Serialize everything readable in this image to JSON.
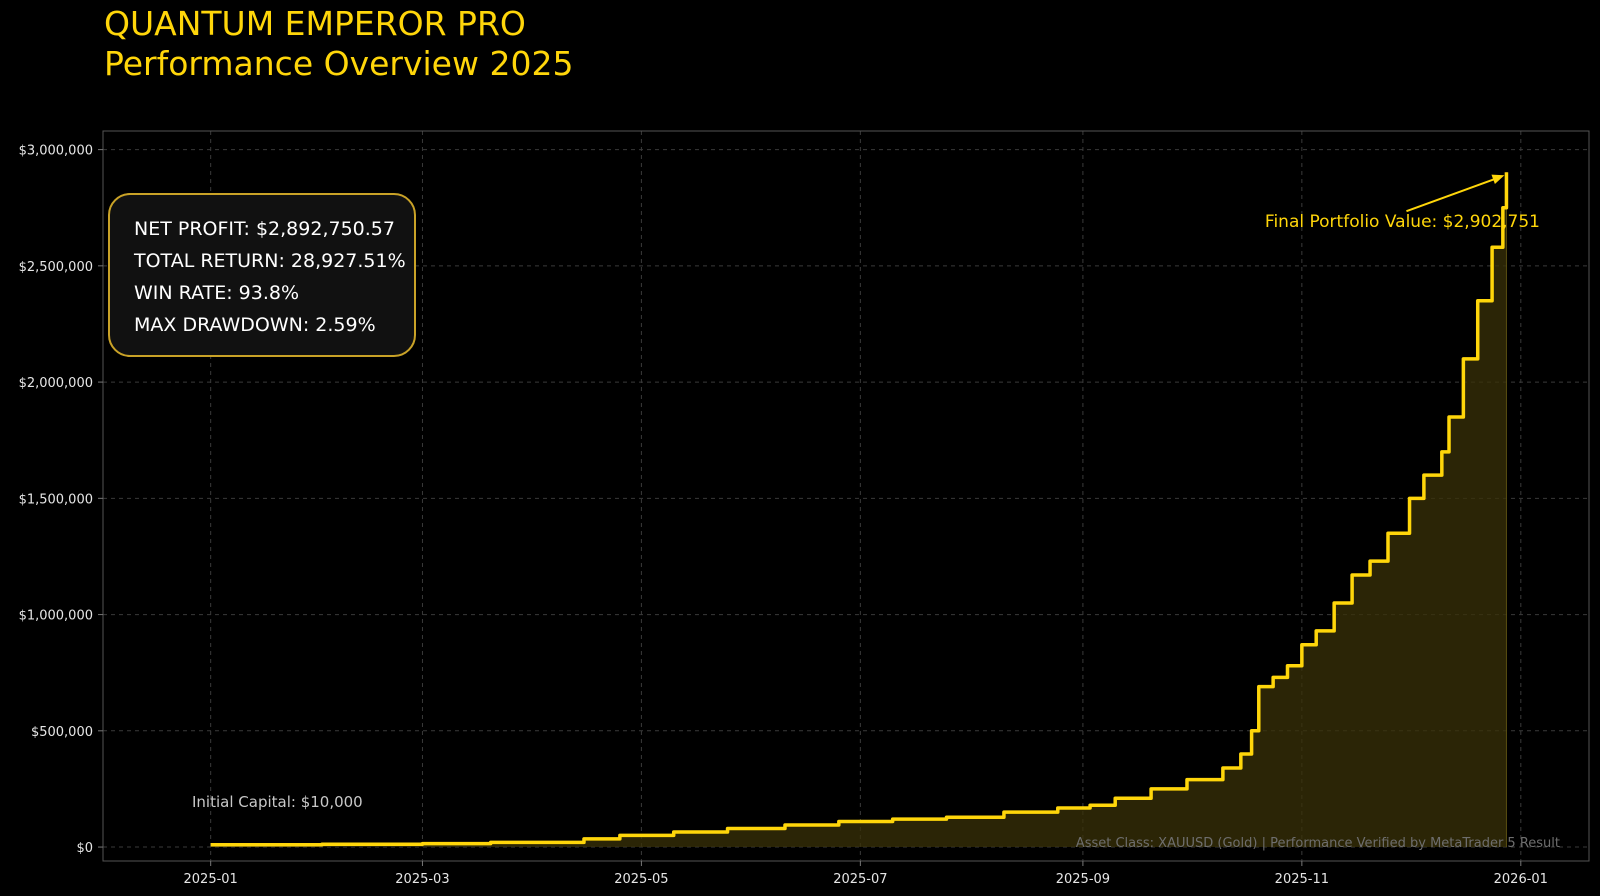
{
  "title": {
    "line1": "QUANTUM EMPEROR PRO",
    "line2": "Performance Overview 2025"
  },
  "stats": {
    "net_profit": "NET PROFIT: $2,892,750.57",
    "total_return": "TOTAL RETURN: 28,927.51%",
    "win_rate": "WIN RATE: 93.8%",
    "max_drawdown": "MAX DRAWDOWN: 2.59%"
  },
  "annotations": {
    "initial_capital": "Initial Capital: $10,000",
    "final_value": "Final Portfolio Value: $2,902,751",
    "footer": "Asset Class: XAUUSD (Gold) | Performance Verified by MetaTrader 5 Result"
  },
  "colors": {
    "background": "#000000",
    "accent": "#ffd60a",
    "fill": "#3a3208",
    "grid": "#3a3a3a",
    "axis": "#555555",
    "muted_text": "#6e6e6e"
  },
  "chart_data": {
    "type": "area",
    "title": "",
    "xlabel": "",
    "ylabel": "",
    "x_axis": {
      "type": "date",
      "range": [
        "2024-12-02",
        "2026-01-20"
      ],
      "ticks": [
        "2025-01-01",
        "2025-03-01",
        "2025-05-01",
        "2025-07-01",
        "2025-09-01",
        "2025-11-01",
        "2026-01-01"
      ],
      "tick_labels": [
        "2025-01",
        "2025-03",
        "2025-05",
        "2025-07",
        "2025-09",
        "2025-11",
        "2026-01"
      ]
    },
    "y_axis": {
      "range": [
        -60000,
        3080000
      ],
      "ticks": [
        0,
        500000,
        1000000,
        1500000,
        2000000,
        2500000,
        3000000
      ],
      "tick_labels": [
        "$0",
        "$500,000",
        "$1,000,000",
        "$1,500,000",
        "$2,000,000",
        "$2,500,000",
        "$3,000,000"
      ]
    },
    "grid": true,
    "series": [
      {
        "x": [
          "2025-01-01",
          "2025-02-01",
          "2025-03-01",
          "2025-03-20",
          "2025-04-15",
          "2025-04-25",
          "2025-05-10",
          "2025-05-25",
          "2025-06-10",
          "2025-06-25",
          "2025-07-10",
          "2025-07-25",
          "2025-08-10",
          "2025-08-25",
          "2025-09-03",
          "2025-09-10",
          "2025-09-20",
          "2025-09-30",
          "2025-10-10",
          "2025-10-15",
          "2025-10-18",
          "2025-10-20",
          "2025-10-24",
          "2025-10-28",
          "2025-11-01",
          "2025-11-05",
          "2025-11-10",
          "2025-11-15",
          "2025-11-20",
          "2025-11-25",
          "2025-12-01",
          "2025-12-05",
          "2025-12-10",
          "2025-12-12",
          "2025-12-16",
          "2025-12-20",
          "2025-12-24",
          "2025-12-27",
          "2025-12-28"
        ],
        "y": [
          10000,
          12000,
          15000,
          20000,
          35000,
          50000,
          65000,
          80000,
          95000,
          110000,
          120000,
          128000,
          150000,
          168000,
          180000,
          210000,
          250000,
          290000,
          340000,
          400000,
          500000,
          690000,
          730000,
          780000,
          870000,
          930000,
          1050000,
          1170000,
          1230000,
          1350000,
          1500000,
          1600000,
          1700000,
          1850000,
          2100000,
          2350000,
          2580000,
          2750000,
          2902751
        ]
      }
    ]
  }
}
